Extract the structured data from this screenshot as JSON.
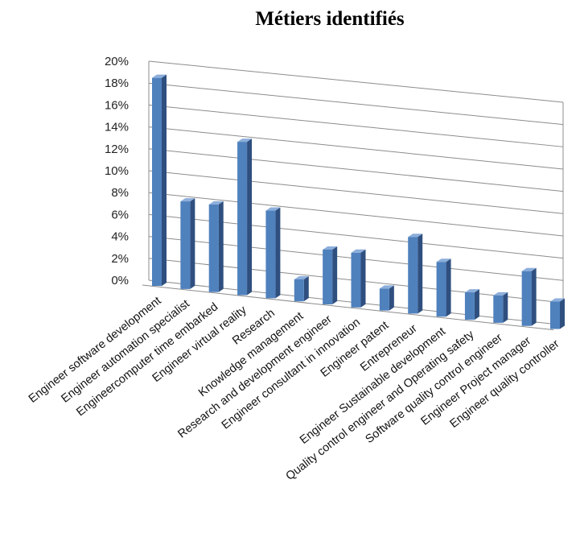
{
  "chart_data": {
    "type": "bar",
    "title": "Métiers identifiés",
    "xlabel": "",
    "ylabel": "",
    "ylim": [
      0,
      20
    ],
    "ytick_labels": [
      "0%",
      "2%",
      "4%",
      "6%",
      "8%",
      "10%",
      "12%",
      "14%",
      "16%",
      "18%",
      "20%"
    ],
    "grid": true,
    "legend": "none",
    "categories": [
      "Engineer software development",
      "Engineer automation specialist",
      "Engineercomputer time embarked",
      "Engineer virtual reality",
      "Research",
      "Knowledge management",
      "Research and development engineer",
      "Engineer consultant in innovation",
      "Engineer patent",
      "Entrepreneur",
      "Engineer Sustainable development",
      "Quality control engineer and Operating safety",
      "Software quality control engineer",
      "Engineer Project manager",
      "Engineer quality controller"
    ],
    "values": [
      19,
      8,
      8,
      14,
      8,
      2,
      5,
      5,
      2,
      7,
      5,
      2.5,
      2.5,
      5,
      2.5
    ],
    "colors": {
      "bar_front": "#4F81BD",
      "bar_side": "#2F4F7F",
      "bar_top": "#8CAEDB",
      "grid": "#8c8c8c"
    }
  }
}
